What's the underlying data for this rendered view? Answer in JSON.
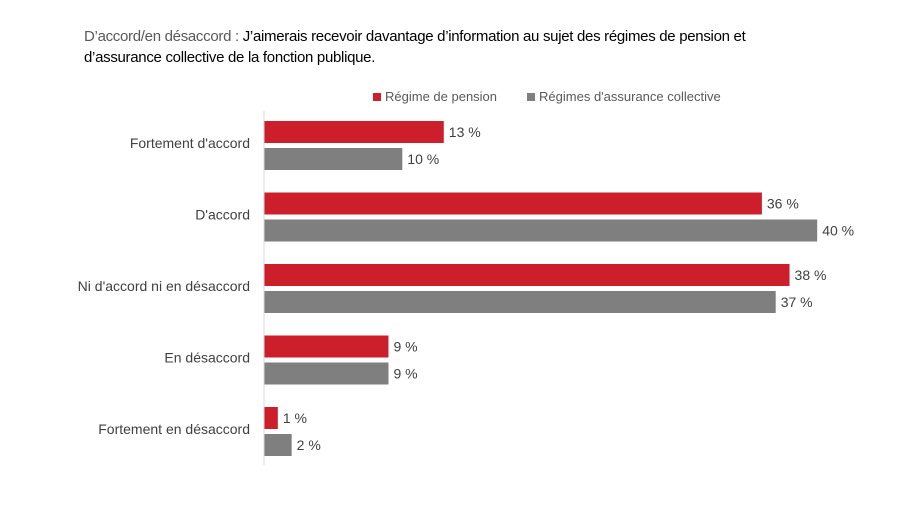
{
  "title_prefix": "D’accord/en désaccord : ",
  "title_main": "J’aimerais recevoir davantage d’information au sujet des régimes de pension et d’assurance collective de la fonction publique.",
  "chart_data": {
    "type": "bar",
    "orientation": "horizontal",
    "categories": [
      "Fortement d'accord",
      "D'accord",
      "Ni d'accord ni en désaccord",
      "En désaccord",
      "Fortement en désaccord"
    ],
    "series": [
      {
        "name": "Régime de pension",
        "color": "#cc1f2b",
        "values": [
          13,
          36,
          38,
          9,
          1
        ],
        "labels": [
          "13 %",
          "36 %",
          "38 %",
          "9 %",
          "1 %"
        ]
      },
      {
        "name": "Régimes d'assurance collective",
        "color": "#7f7f7f",
        "values": [
          10,
          40,
          37,
          9,
          2
        ],
        "labels": [
          "10 %",
          "40 %",
          "37 %",
          "9 %",
          "2 %"
        ]
      }
    ],
    "xlim": [
      0,
      40
    ],
    "grid": false,
    "legend": "top"
  }
}
